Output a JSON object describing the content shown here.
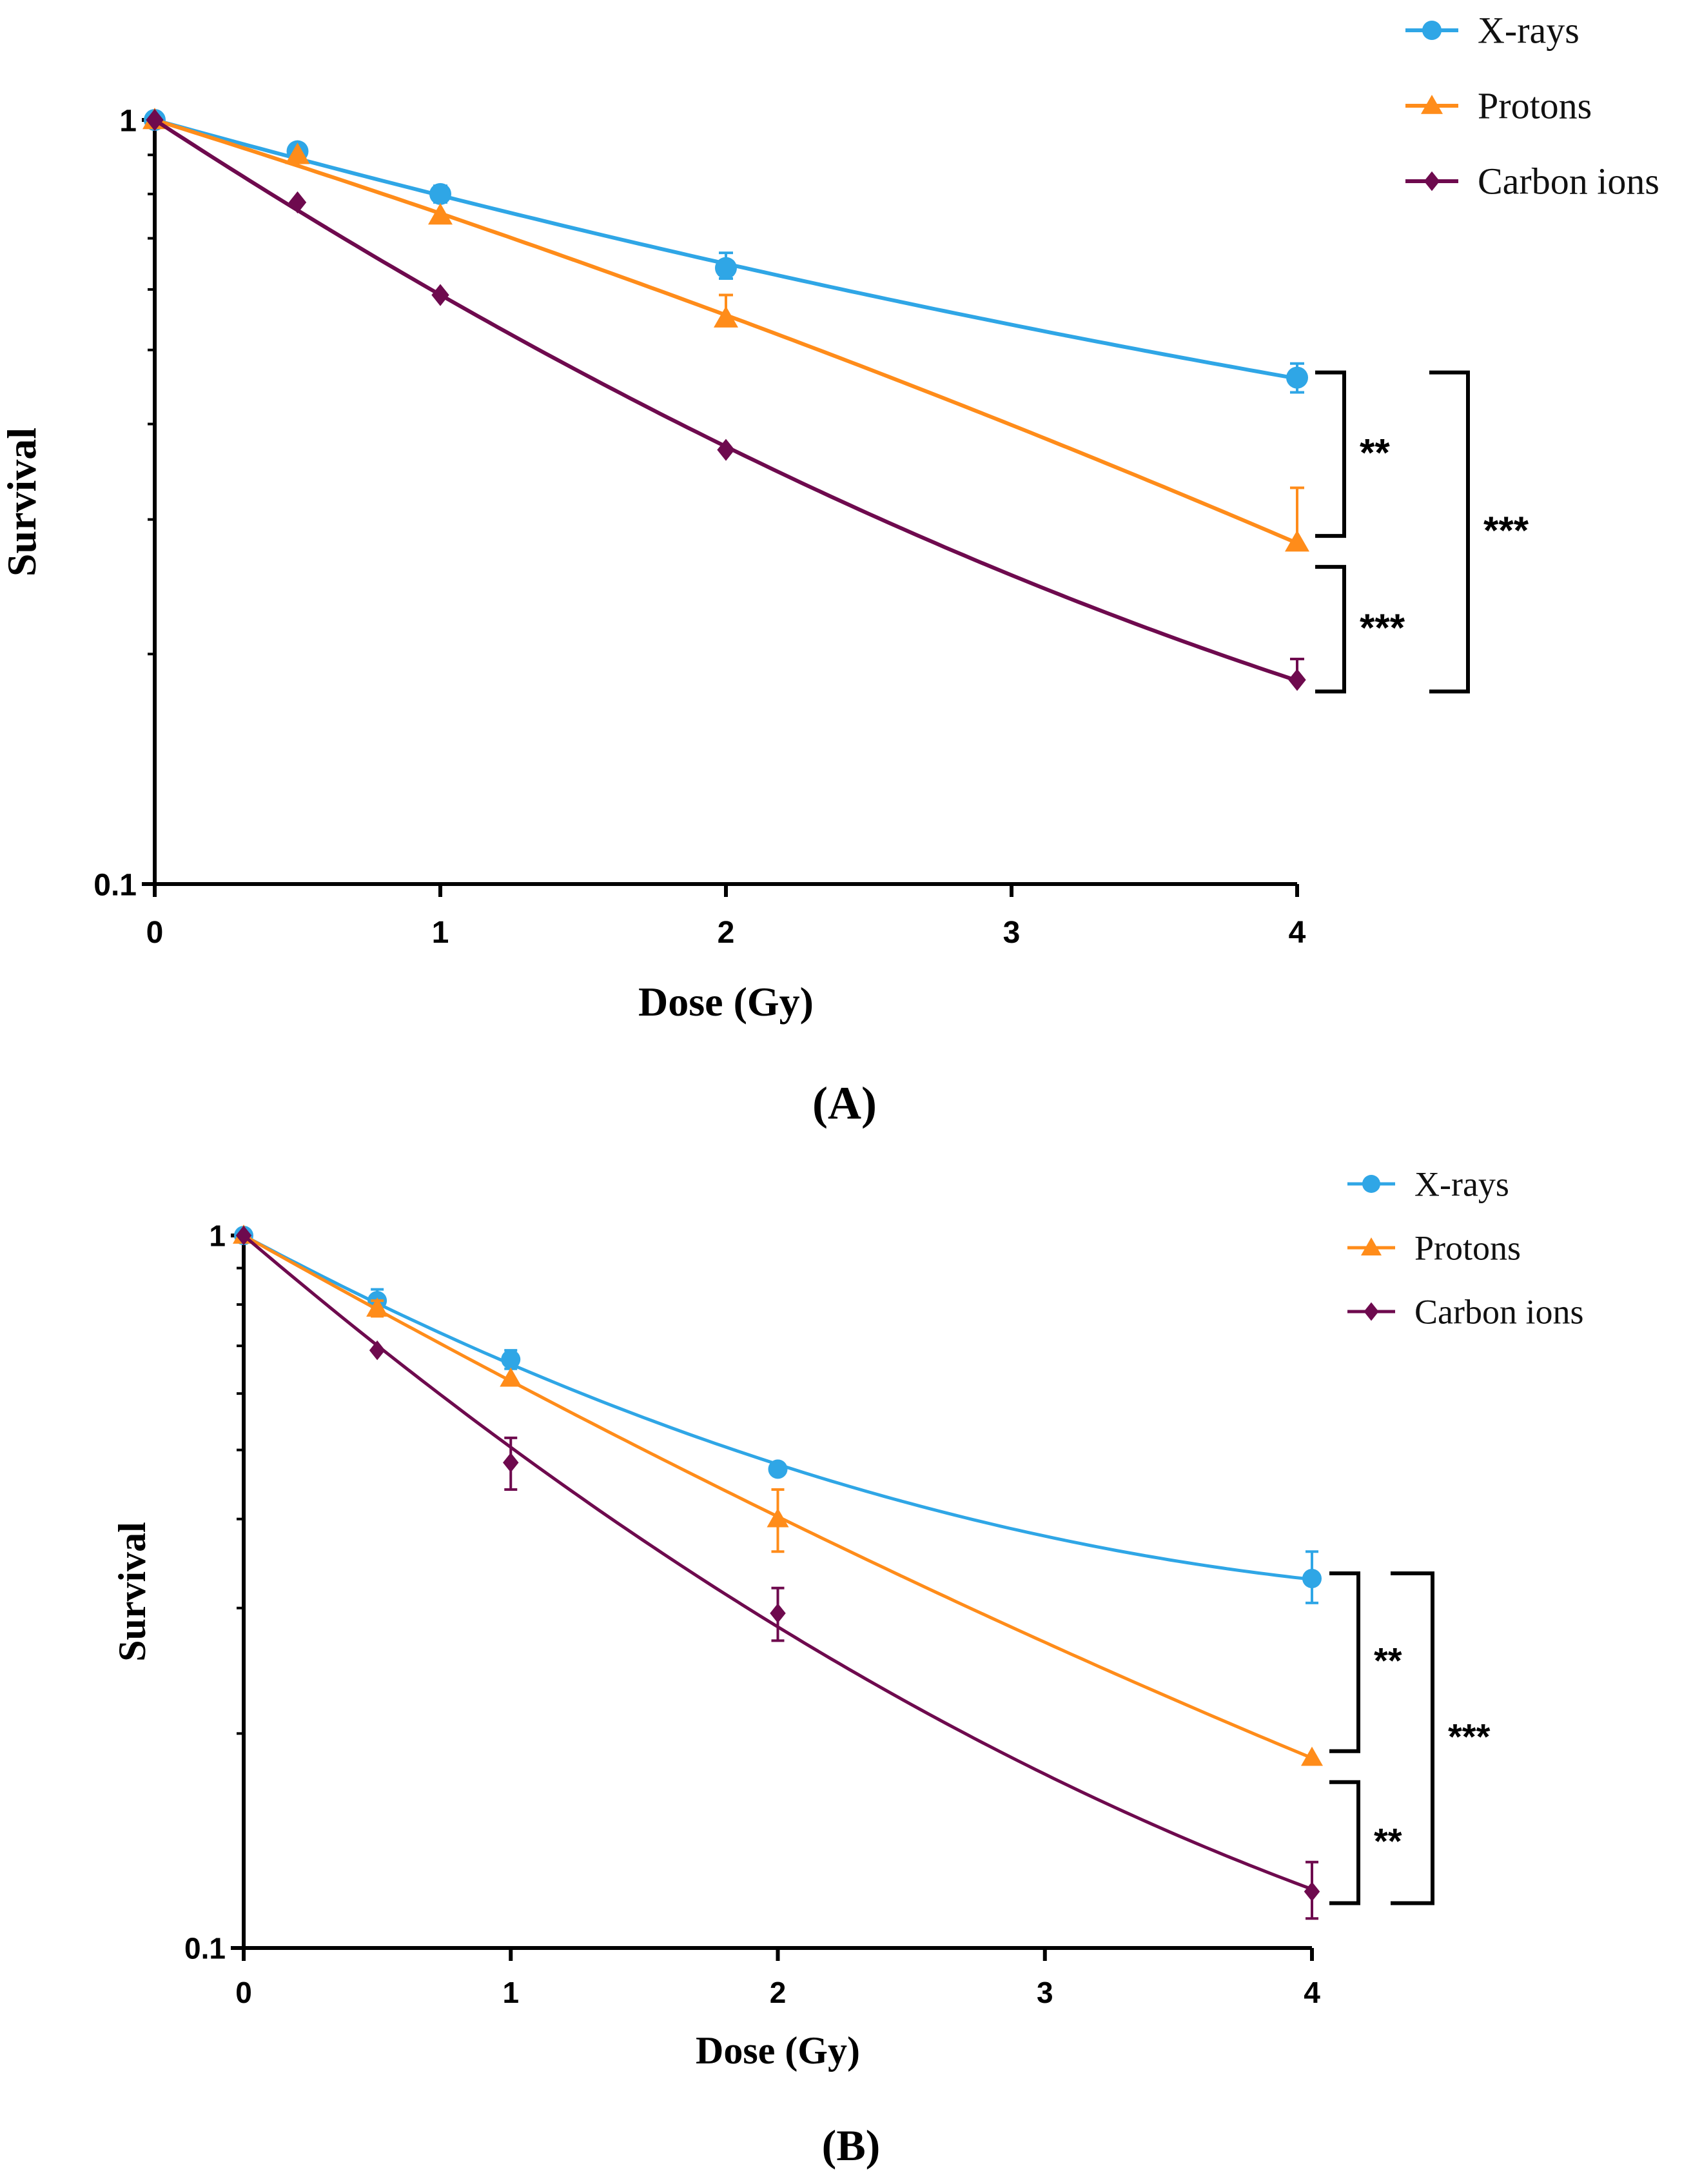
{
  "chart_data": [
    {
      "type": "line",
      "panel": "A",
      "panel_label": "(A)",
      "xlabel": "Dose (Gy)",
      "ylabel": "Survival",
      "yscale": "log",
      "xlim": [
        0,
        4
      ],
      "ylim": [
        0.1,
        1
      ],
      "x_ticks": [
        "0",
        "1",
        "2",
        "3",
        "4"
      ],
      "y_ticks": [
        "1",
        "0.1"
      ],
      "legend_position": "top-right",
      "series": [
        {
          "name": "X-rays",
          "color": "#2fa6e6",
          "marker": "circle",
          "x": [
            0,
            0.5,
            1,
            2,
            4
          ],
          "values": [
            1.0,
            0.91,
            0.8,
            0.64,
            0.46
          ],
          "err_up": [
            0,
            0.02,
            0.02,
            0.03,
            0.02
          ],
          "err_down": [
            0,
            0.02,
            0.02,
            0.02,
            0.02
          ]
        },
        {
          "name": "Protons",
          "color": "#ff8c1a",
          "marker": "triangle",
          "x": [
            0,
            0.5,
            1,
            2,
            4
          ],
          "values": [
            1.0,
            0.9,
            0.75,
            0.55,
            0.28
          ],
          "err_up": [
            0,
            0,
            0,
            0.04,
            0.05
          ],
          "err_down": [
            0,
            0,
            0,
            0,
            0
          ]
        },
        {
          "name": "Carbon ions",
          "color": "#6e0a4e",
          "marker": "diamond",
          "x": [
            0,
            0.5,
            1,
            2,
            4
          ],
          "values": [
            1.0,
            0.78,
            0.59,
            0.37,
            0.185
          ],
          "err_up": [
            0,
            0,
            0,
            0,
            0.012
          ],
          "err_down": [
            0,
            0,
            0,
            0,
            0
          ]
        }
      ],
      "significance": [
        {
          "between": [
            "X-rays",
            "Protons"
          ],
          "label": "**"
        },
        {
          "between": [
            "Protons",
            "Carbon ions"
          ],
          "label": "***"
        },
        {
          "between": [
            "X-rays",
            "Carbon ions"
          ],
          "label": "***"
        }
      ]
    },
    {
      "type": "line",
      "panel": "B",
      "panel_label": "(B)",
      "xlabel": "Dose (Gy)",
      "ylabel": "Survival",
      "yscale": "log",
      "xlim": [
        0,
        4
      ],
      "ylim": [
        0.1,
        1
      ],
      "x_ticks": [
        "0",
        "1",
        "2",
        "3",
        "4"
      ],
      "y_ticks": [
        "1",
        "0.1"
      ],
      "legend_position": "top-right",
      "series": [
        {
          "name": "X-rays",
          "color": "#2fa6e6",
          "marker": "circle",
          "x": [
            0,
            0.5,
            1,
            2,
            4
          ],
          "values": [
            1.0,
            0.81,
            0.67,
            0.47,
            0.33
          ],
          "err_up": [
            0,
            0.03,
            0.02,
            0,
            0.03
          ],
          "err_down": [
            0,
            0.03,
            0.02,
            0,
            0.025
          ]
        },
        {
          "name": "Protons",
          "color": "#ff8c1a",
          "marker": "triangle",
          "x": [
            0,
            0.5,
            1,
            2,
            4
          ],
          "values": [
            1.0,
            0.79,
            0.63,
            0.4,
            0.185
          ],
          "err_up": [
            0,
            0.02,
            0,
            0.04,
            0
          ],
          "err_down": [
            0,
            0.02,
            0,
            0.04,
            0
          ]
        },
        {
          "name": "Carbon ions",
          "color": "#6e0a4e",
          "marker": "diamond",
          "x": [
            0,
            0.5,
            1,
            2,
            4
          ],
          "values": [
            1.0,
            0.69,
            0.48,
            0.295,
            0.12
          ],
          "err_up": [
            0,
            0,
            0.04,
            0.025,
            0.012
          ],
          "err_down": [
            0,
            0,
            0.04,
            0.025,
            0.01
          ]
        }
      ],
      "significance": [
        {
          "between": [
            "X-rays",
            "Protons"
          ],
          "label": "**"
        },
        {
          "between": [
            "Protons",
            "Carbon ions"
          ],
          "label": "**"
        },
        {
          "between": [
            "X-rays",
            "Carbon ions"
          ],
          "label": "***"
        }
      ]
    }
  ]
}
